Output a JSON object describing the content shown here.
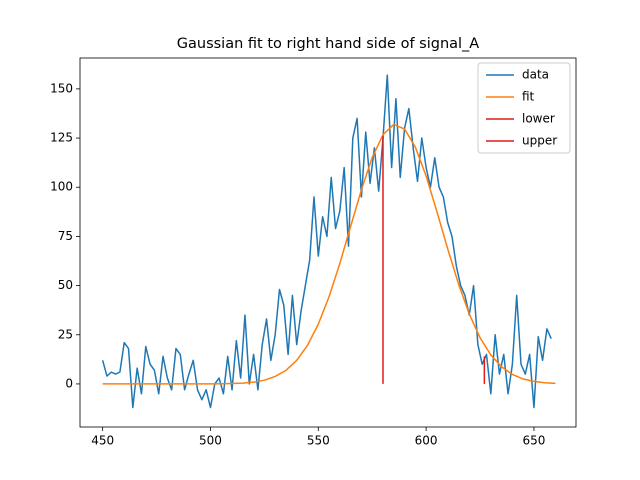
{
  "chart_data": {
    "type": "line",
    "title": "Gaussian fit to right hand side of signal_A",
    "xlim": [
      439.5,
      669.5
    ],
    "ylim": [
      -21.9,
      165.7
    ],
    "xticks": [
      450,
      500,
      550,
      600,
      650
    ],
    "yticks": [
      0,
      25,
      50,
      75,
      100,
      125,
      150
    ],
    "legend": "upper right",
    "series": [
      {
        "name": "data",
        "color": "#1f77b4",
        "x": [
          450,
          452,
          454,
          456,
          458,
          460,
          462,
          464,
          466,
          468,
          470,
          472,
          474,
          476,
          478,
          480,
          482,
          484,
          486,
          488,
          490,
          492,
          494,
          496,
          498,
          500,
          502,
          504,
          506,
          508,
          510,
          512,
          514,
          516,
          518,
          520,
          522,
          524,
          526,
          528,
          530,
          532,
          534,
          536,
          538,
          540,
          542,
          544,
          546,
          548,
          550,
          552,
          554,
          556,
          558,
          560,
          562,
          564,
          566,
          568,
          570,
          572,
          574,
          576,
          578,
          580,
          582,
          584,
          586,
          588,
          590,
          592,
          594,
          596,
          598,
          600,
          602,
          604,
          606,
          608,
          610,
          612,
          614,
          616,
          618,
          620,
          622,
          624,
          626,
          628,
          630,
          632,
          634,
          636,
          638,
          640,
          642,
          644,
          646,
          648,
          650,
          652,
          654,
          656,
          658
        ],
        "values": [
          12,
          4,
          6,
          5,
          6,
          21,
          18,
          -12,
          8,
          -5,
          19,
          10,
          7,
          -5,
          14,
          3,
          -3,
          18,
          15,
          -3,
          5,
          12,
          -3,
          -8,
          -3,
          -12,
          0,
          3,
          -5,
          14,
          -3,
          22,
          3,
          35,
          0,
          15,
          -3,
          20,
          33,
          12,
          25,
          48,
          40,
          15,
          45,
          20,
          37,
          50,
          63,
          95,
          65,
          85,
          75,
          105,
          79,
          88,
          110,
          70,
          125,
          135,
          95,
          128,
          102,
          120,
          98,
          125,
          157,
          110,
          145,
          105,
          130,
          140,
          120,
          103,
          125,
          110,
          100,
          115,
          100,
          95,
          82,
          75,
          60,
          50,
          45,
          35,
          50,
          20,
          10,
          15,
          -5,
          25,
          5,
          15,
          -5,
          10,
          45,
          10,
          5,
          15,
          -12,
          24,
          12,
          28,
          23
        ]
      },
      {
        "name": "fit",
        "color": "#ff7f0e",
        "x": [
          450,
          455,
          460,
          465,
          470,
          475,
          480,
          485,
          490,
          495,
          500,
          505,
          510,
          515,
          520,
          525,
          530,
          535,
          540,
          545,
          550,
          555,
          560,
          565,
          570,
          575,
          580,
          585,
          590,
          595,
          600,
          605,
          610,
          615,
          620,
          625,
          630,
          635,
          640,
          645,
          650,
          655,
          660
        ],
        "values": [
          0,
          0,
          0,
          0,
          0,
          0,
          0,
          0,
          0,
          0,
          0,
          0.1,
          0.2,
          0.4,
          0.9,
          1.9,
          3.8,
          6.9,
          12.0,
          19.6,
          30.4,
          44.4,
          61.3,
          80.1,
          98.7,
          115.1,
          126.7,
          131.9,
          129.6,
          120.4,
          105.7,
          87.6,
          68.7,
          50.9,
          35.6,
          23.5,
          14.7,
          8.7,
          4.8,
          2.5,
          1.3,
          0.6,
          0.3
        ]
      },
      {
        "name": "lower",
        "color": "#e41a1a",
        "x": [
          580,
          580
        ],
        "values": [
          0,
          126
        ]
      },
      {
        "name": "upper",
        "color": "#e41a1a",
        "x": [
          627,
          627
        ],
        "values": [
          0,
          14
        ]
      }
    ]
  }
}
